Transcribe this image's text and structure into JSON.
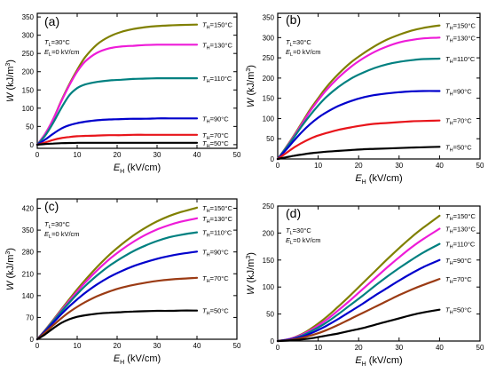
{
  "chart_data": [
    {
      "type": "line",
      "panel_label": "(a)",
      "xlabel": {
        "main": "E",
        "sub": "H",
        "rest": " (kV/cm)"
      },
      "ylabel": {
        "main": "W",
        "rest": " (kJ/m",
        "sup": "3",
        "end": ")"
      },
      "xlim": [
        0,
        50
      ],
      "ylim": [
        -10,
        360
      ],
      "xticks": [
        0,
        10,
        20,
        30,
        40,
        50
      ],
      "yticks": [
        0,
        50,
        100,
        150,
        200,
        250,
        300,
        350
      ],
      "conditions": [
        {
          "main": "T",
          "sub": "L",
          "rest": "=30°C"
        },
        {
          "main": "E",
          "sub": "L",
          "rest": "=0 kV/cm"
        }
      ],
      "series": [
        {
          "name": "150°C",
          "color": "#808000",
          "x": [
            0,
            2,
            4,
            6,
            8,
            10,
            12,
            15,
            18,
            21,
            24,
            27,
            30,
            33,
            36,
            40
          ],
          "y": [
            0,
            30,
            70,
            120,
            165,
            205,
            240,
            275,
            296,
            309,
            317,
            322,
            325,
            327,
            328,
            329
          ]
        },
        {
          "name": "130°C",
          "color": "#ee1bd8",
          "x": [
            0,
            2,
            4,
            6,
            8,
            10,
            12,
            15,
            18,
            21,
            24,
            27,
            30,
            33,
            36,
            40
          ],
          "y": [
            0,
            30,
            70,
            118,
            162,
            200,
            228,
            252,
            264,
            269,
            271,
            273,
            274,
            274,
            274,
            274
          ]
        },
        {
          "name": "110°C",
          "color": "#008080",
          "x": [
            0,
            2,
            4,
            6,
            8,
            10,
            12,
            15,
            18,
            21,
            24,
            27,
            30,
            33,
            36,
            40
          ],
          "y": [
            0,
            25,
            60,
            100,
            135,
            155,
            165,
            172,
            176,
            178,
            180,
            181,
            182,
            182,
            182,
            182
          ]
        },
        {
          "name": "90°C",
          "color": "#0000cc",
          "x": [
            0,
            2,
            4,
            6,
            8,
            10,
            12,
            15,
            18,
            21,
            24,
            27,
            30,
            33,
            36,
            40
          ],
          "y": [
            0,
            14,
            30,
            44,
            53,
            59,
            63,
            67,
            69,
            70,
            71,
            71,
            72,
            72,
            72,
            72
          ]
        },
        {
          "name": "70°C",
          "color": "#e8151b",
          "x": [
            0,
            2,
            4,
            6,
            8,
            10,
            12,
            15,
            18,
            21,
            24,
            27,
            30,
            33,
            36,
            40
          ],
          "y": [
            0,
            6,
            13,
            18,
            21,
            23,
            24,
            25,
            26,
            26,
            27,
            27,
            27,
            27,
            27,
            27
          ]
        },
        {
          "name": "50°C",
          "color": "#000000",
          "x": [
            0,
            2,
            4,
            6,
            8,
            10,
            12,
            15,
            18,
            21,
            24,
            27,
            30,
            33,
            36,
            40
          ],
          "y": [
            0,
            2,
            3,
            4,
            4.5,
            5,
            5,
            5,
            5,
            5,
            5,
            5,
            5,
            5,
            5,
            5
          ]
        }
      ],
      "series_label_prefix": {
        "main": "T",
        "sub": "H",
        "eq": "="
      }
    },
    {
      "type": "line",
      "panel_label": "(b)",
      "xlabel": {
        "main": "E",
        "sub": "H",
        "rest": " (kV/cm)"
      },
      "ylabel": {
        "main": "W",
        "rest": " (kJ/m",
        "sup": "3",
        "end": ")"
      },
      "xlim": [
        0,
        50
      ],
      "ylim": [
        0,
        360
      ],
      "xticks": [
        0,
        10,
        20,
        30,
        40,
        50
      ],
      "yticks": [
        0,
        50,
        100,
        150,
        200,
        250,
        300,
        350
      ],
      "conditions": [
        {
          "main": "T",
          "sub": "L",
          "rest": "=30°C"
        },
        {
          "main": "E",
          "sub": "L",
          "rest": "=0 kV/cm"
        }
      ],
      "series": [
        {
          "name": "150°C",
          "color": "#808000",
          "x": [
            0,
            2,
            4,
            6,
            8,
            10,
            12,
            15,
            18,
            21,
            24,
            27,
            30,
            33,
            36,
            40
          ],
          "y": [
            0,
            28,
            58,
            90,
            122,
            150,
            177,
            210,
            238,
            260,
            279,
            295,
            307,
            317,
            324,
            330
          ]
        },
        {
          "name": "130°C",
          "color": "#ee1bd8",
          "x": [
            0,
            2,
            4,
            6,
            8,
            10,
            12,
            15,
            18,
            21,
            24,
            27,
            30,
            33,
            36,
            40
          ],
          "y": [
            0,
            27,
            56,
            87,
            118,
            145,
            170,
            201,
            227,
            248,
            265,
            278,
            288,
            294,
            298,
            300
          ]
        },
        {
          "name": "110°C",
          "color": "#008080",
          "x": [
            0,
            2,
            4,
            6,
            8,
            10,
            12,
            15,
            18,
            21,
            24,
            27,
            30,
            33,
            36,
            40
          ],
          "y": [
            0,
            26,
            53,
            82,
            108,
            132,
            153,
            178,
            198,
            213,
            225,
            234,
            240,
            244,
            247,
            248
          ]
        },
        {
          "name": "90°C",
          "color": "#0000cc",
          "x": [
            0,
            2,
            4,
            6,
            8,
            10,
            12,
            15,
            18,
            21,
            24,
            27,
            30,
            33,
            36,
            40
          ],
          "y": [
            0,
            22,
            45,
            67,
            86,
            102,
            115,
            131,
            143,
            152,
            158,
            162,
            165,
            167,
            168,
            168
          ]
        },
        {
          "name": "70°C",
          "color": "#e8151b",
          "x": [
            0,
            2,
            4,
            6,
            8,
            10,
            12,
            15,
            18,
            21,
            24,
            27,
            30,
            33,
            36,
            40
          ],
          "y": [
            0,
            14,
            28,
            40,
            50,
            58,
            64,
            72,
            78,
            83,
            87,
            89,
            91,
            93,
            94,
            95
          ]
        },
        {
          "name": "50°C",
          "color": "#000000",
          "x": [
            0,
            2,
            4,
            6,
            8,
            10,
            12,
            15,
            18,
            21,
            24,
            27,
            30,
            33,
            36,
            40
          ],
          "y": [
            0,
            4,
            8,
            11,
            14,
            16,
            18,
            20,
            22,
            24,
            25,
            26,
            27,
            28,
            29,
            30
          ]
        }
      ],
      "series_label_prefix": {
        "main": "T",
        "sub": "H",
        "eq": "="
      }
    },
    {
      "type": "line",
      "panel_label": "(c)",
      "xlabel": {
        "main": "E",
        "sub": "H",
        "rest": " (kV/cm)"
      },
      "ylabel": {
        "main": "W",
        "rest": " (kJ/m",
        "sup": "3",
        "end": ")"
      },
      "xlim": [
        0,
        50
      ],
      "ylim": [
        0,
        450
      ],
      "xticks": [
        0,
        10,
        20,
        30,
        40,
        50
      ],
      "yticks": [
        0,
        70,
        140,
        210,
        280,
        350,
        420
      ],
      "conditions": [
        {
          "main": "T",
          "sub": "L",
          "rest": "=30°C"
        },
        {
          "main": "E",
          "sub": "L",
          "rest": "=0 kV/cm"
        }
      ],
      "series": [
        {
          "name": "150°C",
          "color": "#808000",
          "x": [
            0,
            2,
            4,
            6,
            8,
            10,
            12,
            15,
            18,
            21,
            24,
            27,
            30,
            33,
            36,
            40
          ],
          "y": [
            0,
            30,
            62,
            95,
            128,
            160,
            190,
            232,
            270,
            303,
            332,
            357,
            378,
            395,
            408,
            422
          ]
        },
        {
          "name": "130°C",
          "color": "#ee1bd8",
          "x": [
            0,
            2,
            4,
            6,
            8,
            10,
            12,
            15,
            18,
            21,
            24,
            27,
            30,
            33,
            36,
            40
          ],
          "y": [
            0,
            29,
            60,
            92,
            123,
            153,
            182,
            221,
            256,
            286,
            312,
            334,
            352,
            366,
            377,
            388
          ]
        },
        {
          "name": "110°C",
          "color": "#008080",
          "x": [
            0,
            2,
            4,
            6,
            8,
            10,
            12,
            15,
            18,
            21,
            24,
            27,
            30,
            33,
            36,
            40
          ],
          "y": [
            0,
            28,
            58,
            88,
            117,
            145,
            171,
            205,
            235,
            260,
            282,
            300,
            315,
            327,
            335,
            343
          ]
        },
        {
          "name": "90°C",
          "color": "#0000cc",
          "x": [
            0,
            2,
            4,
            6,
            8,
            10,
            12,
            15,
            18,
            21,
            24,
            27,
            30,
            33,
            36,
            40
          ],
          "y": [
            0,
            26,
            53,
            80,
            105,
            128,
            149,
            176,
            199,
            218,
            234,
            247,
            258,
            267,
            274,
            281
          ]
        },
        {
          "name": "70°C",
          "color": "#9b3b14",
          "x": [
            0,
            2,
            4,
            6,
            8,
            10,
            12,
            15,
            18,
            21,
            24,
            27,
            30,
            33,
            36,
            40
          ],
          "y": [
            0,
            22,
            45,
            67,
            87,
            104,
            119,
            138,
            153,
            165,
            174,
            181,
            187,
            191,
            194,
            197
          ]
        },
        {
          "name": "50°C",
          "color": "#000000",
          "x": [
            0,
            2,
            4,
            6,
            8,
            10,
            12,
            15,
            18,
            21,
            24,
            27,
            30,
            33,
            36,
            40
          ],
          "y": [
            0,
            16,
            35,
            52,
            64,
            72,
            77,
            82,
            85,
            87,
            89,
            90,
            91,
            91,
            92,
            92
          ]
        }
      ],
      "series_label_prefix": {
        "main": "T",
        "sub": "H",
        "eq": "="
      }
    },
    {
      "type": "line",
      "panel_label": "(d)",
      "xlabel": {
        "main": "E",
        "sub": "H",
        "rest": " (kV/cm)"
      },
      "ylabel": {
        "main": "W",
        "rest": " (kJ/m",
        "sup": "3",
        "end": ")"
      },
      "xlim": [
        0,
        50
      ],
      "ylim": [
        0,
        250
      ],
      "xticks": [
        0,
        10,
        20,
        30,
        40,
        50
      ],
      "yticks": [
        0,
        50,
        100,
        150,
        200,
        250
      ],
      "conditions": [
        {
          "main": "T",
          "sub": "L",
          "rest": "=30°C"
        },
        {
          "main": "E",
          "sub": "L",
          "rest": "=0 kV/cm"
        }
      ],
      "series": [
        {
          "name": "150°C",
          "color": "#808000",
          "x": [
            0,
            3,
            6,
            9,
            12,
            15,
            18,
            21,
            24,
            27,
            30,
            33,
            36,
            40
          ],
          "y": [
            0,
            4,
            13,
            27,
            44,
            64,
            85,
            107,
            129,
            151,
            172,
            192,
            210,
            232
          ]
        },
        {
          "name": "130°C",
          "color": "#ee1bd8",
          "x": [
            0,
            3,
            6,
            9,
            12,
            15,
            18,
            21,
            24,
            27,
            30,
            33,
            36,
            40
          ],
          "y": [
            0,
            4,
            12,
            24,
            39,
            57,
            76,
            96,
            116,
            136,
            155,
            173,
            189,
            208
          ]
        },
        {
          "name": "110°C",
          "color": "#008080",
          "x": [
            0,
            3,
            6,
            9,
            12,
            15,
            18,
            21,
            24,
            27,
            30,
            33,
            36,
            40
          ],
          "y": [
            0,
            3,
            10,
            21,
            34,
            50,
            67,
            84,
            102,
            119,
            135,
            150,
            164,
            180
          ]
        },
        {
          "name": "90°C",
          "color": "#0000cc",
          "x": [
            0,
            3,
            6,
            9,
            12,
            15,
            18,
            21,
            24,
            27,
            30,
            33,
            36,
            40
          ],
          "y": [
            0,
            3,
            8,
            17,
            28,
            41,
            55,
            69,
            84,
            98,
            112,
            125,
            137,
            150
          ]
        },
        {
          "name": "70°C",
          "color": "#9b3b14",
          "x": [
            0,
            3,
            6,
            9,
            12,
            15,
            18,
            21,
            24,
            27,
            30,
            33,
            36,
            40
          ],
          "y": [
            0,
            2,
            6,
            12,
            20,
            30,
            41,
            52,
            63,
            74,
            85,
            95,
            104,
            115
          ]
        },
        {
          "name": "50°C",
          "color": "#000000",
          "x": [
            0,
            3,
            6,
            9,
            12,
            15,
            18,
            21,
            24,
            27,
            30,
            33,
            36,
            40
          ],
          "y": [
            0,
            1,
            3,
            6,
            10,
            14,
            19,
            24,
            30,
            36,
            42,
            48,
            53,
            58
          ]
        }
      ],
      "series_label_prefix": {
        "main": "T",
        "sub": "H",
        "eq": "="
      }
    }
  ]
}
